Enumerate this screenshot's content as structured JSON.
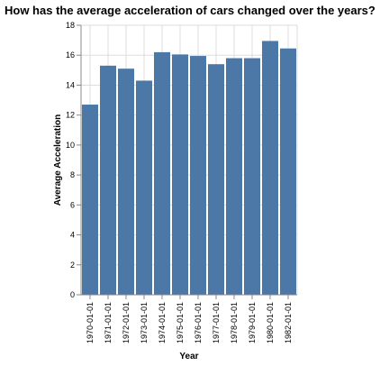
{
  "chart_data": {
    "type": "bar",
    "title": "How has the average acceleration of cars changed over the years?",
    "xlabel": "Year",
    "ylabel": "Average Acceleration",
    "categories": [
      "1970-01-01",
      "1971-01-01",
      "1972-01-01",
      "1973-01-01",
      "1974-01-01",
      "1975-01-01",
      "1976-01-01",
      "1977-01-01",
      "1978-01-01",
      "1979-01-01",
      "1980-01-01",
      "1982-01-01"
    ],
    "values": [
      12.7,
      15.3,
      15.1,
      14.3,
      16.2,
      16.05,
      15.95,
      15.4,
      15.8,
      15.8,
      16.95,
      16.45
    ],
    "ylim": [
      0,
      18
    ],
    "yticks": [
      0,
      2,
      4,
      6,
      8,
      10,
      12,
      14,
      16,
      18
    ],
    "grid": true,
    "colors": {
      "bar": "#4c78a8"
    }
  }
}
